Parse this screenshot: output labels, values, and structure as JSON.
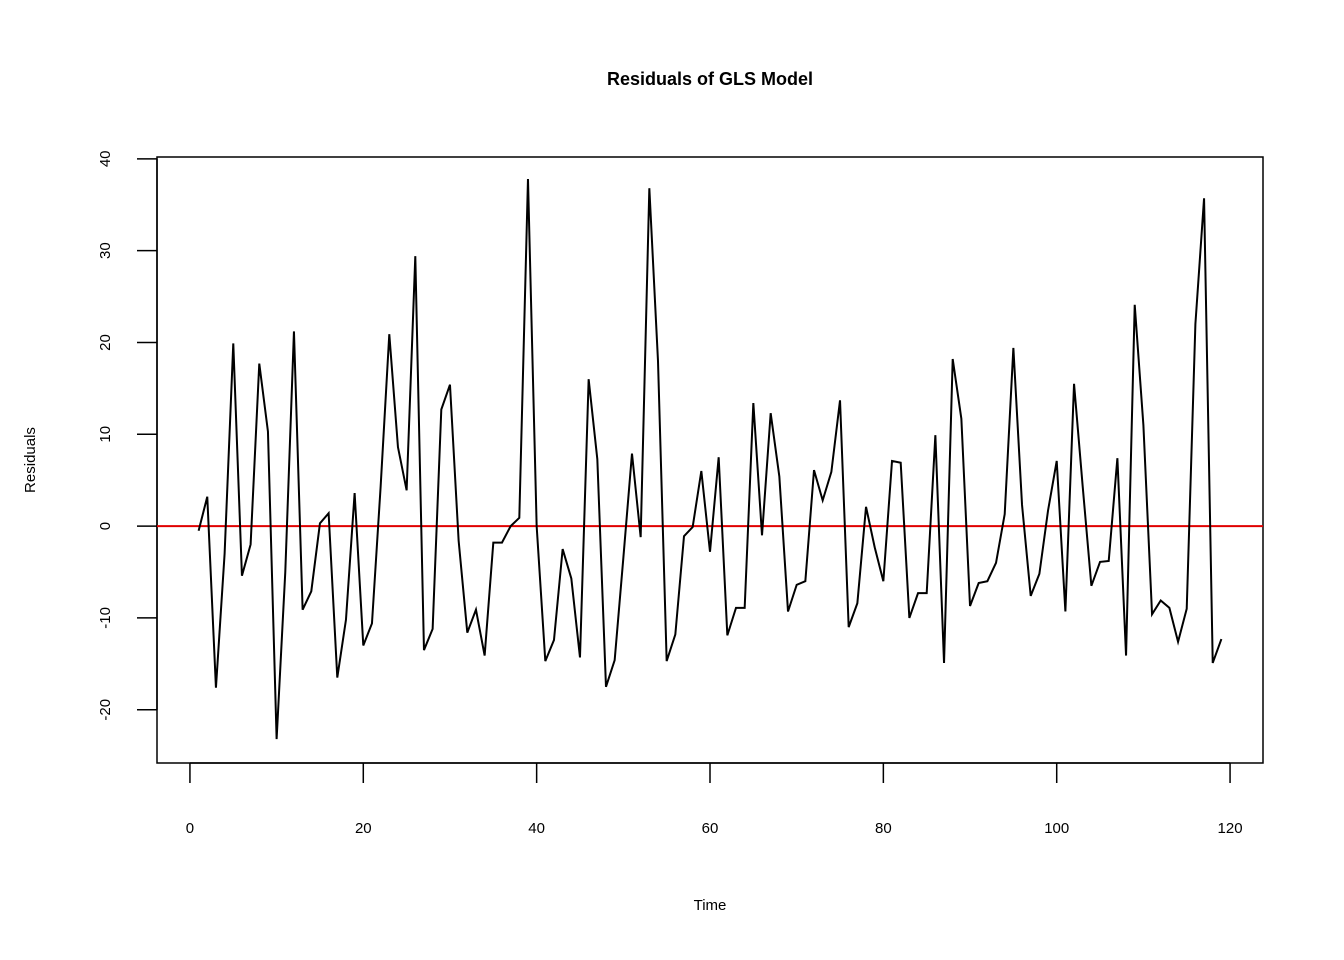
{
  "chart_data": {
    "type": "line",
    "title": "Residuals of GLS Model",
    "xlabel": "Time",
    "ylabel": "Residuals",
    "xlim": [
      -3.8,
      123.8
    ],
    "ylim": [
      -25.8,
      40.2
    ],
    "xticks": [
      0,
      20,
      40,
      60,
      80,
      100,
      120
    ],
    "yticks": [
      -20,
      -10,
      0,
      10,
      20,
      30,
      40
    ],
    "grid": false,
    "reference_line": {
      "y": 0,
      "color": "#e00000"
    },
    "series": [
      {
        "color": "#000000",
        "x": [
          1,
          2,
          3,
          4,
          5,
          6,
          7,
          8,
          9,
          10,
          11,
          12,
          13,
          14,
          15,
          16,
          17,
          18,
          19,
          20,
          21,
          22,
          23,
          24,
          25,
          26,
          27,
          28,
          29,
          30,
          31,
          32,
          33,
          34,
          35,
          36,
          37,
          38,
          39,
          40,
          41,
          42,
          43,
          44,
          45,
          46,
          47,
          48,
          49,
          50,
          51,
          52,
          53,
          54,
          55,
          56,
          57,
          58,
          59,
          60,
          61,
          62,
          63,
          64,
          65,
          66,
          67,
          68,
          69,
          70,
          71,
          72,
          73,
          74,
          75,
          76,
          77,
          78,
          79,
          80,
          81,
          82,
          83,
          84,
          85,
          86,
          87,
          88,
          89,
          90,
          91,
          92,
          93,
          94,
          95,
          96,
          97,
          98,
          99,
          100,
          101,
          102,
          103,
          104,
          105,
          106,
          107,
          108,
          109,
          110,
          111,
          112,
          113,
          114,
          115,
          116,
          117,
          118,
          119
        ],
        "values": [
          -0.5,
          3.2,
          -17.6,
          -3,
          19.9,
          -5.4,
          -2,
          17.7,
          10.3,
          -23.2,
          -5,
          21.2,
          -9.1,
          -7.1,
          0.3,
          1.4,
          -16.5,
          -10.2,
          3.6,
          -13,
          -10.6,
          4.3,
          20.9,
          8.6,
          3.9,
          29.4,
          -13.5,
          -11.2,
          12.7,
          15.4,
          -1.6,
          -11.6,
          -9.1,
          -14.1,
          -1.8,
          -1.8,
          0,
          0.9,
          37.8,
          0,
          -14.7,
          -12.4,
          -2.5,
          -5.7,
          -14.3,
          16,
          7.3,
          -17.5,
          -14.6,
          -3.5,
          7.9,
          -1.2,
          36.8,
          18,
          -14.7,
          -11.8,
          -1.1,
          -0.1,
          6,
          -2.8,
          7.5,
          -11.9,
          -8.9,
          -8.9,
          13.4,
          -1,
          12.3,
          5.4,
          -9.3,
          -6.4,
          -6,
          6.1,
          2.8,
          5.9,
          13.7,
          -11,
          -8.4,
          2.1,
          -2.3,
          -6,
          7.1,
          6.9,
          -10,
          -7.3,
          -7.3,
          9.9,
          -14.9,
          18.2,
          11.7,
          -8.7,
          -6.2,
          -6,
          -4,
          1.3,
          19.4,
          2.3,
          -7.6,
          -5.2,
          1.7,
          7.1,
          -9.3,
          15.5,
          4.3,
          -6.5,
          -3.9,
          -3.8,
          7.4,
          -14.1,
          24.1,
          11,
          -9.6,
          -8.1,
          -8.9,
          -12.6,
          -9,
          22,
          35.7,
          -14.9,
          -12.3
        ]
      }
    ]
  }
}
